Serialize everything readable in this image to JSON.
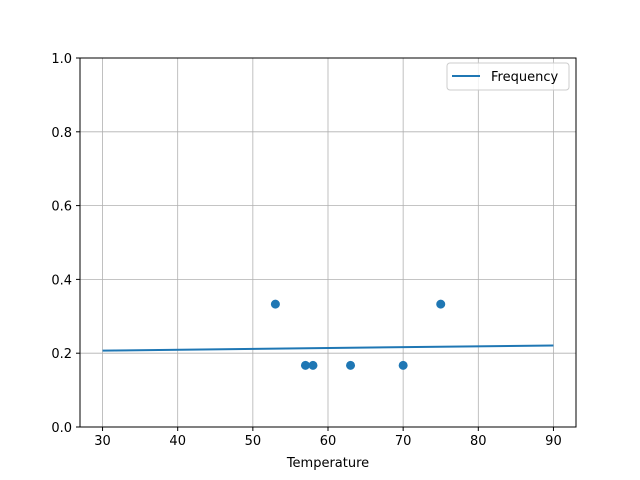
{
  "chart_data": {
    "type": "scatter",
    "title": "",
    "xlabel": "Temperature",
    "ylabel": "",
    "xlim": [
      27,
      93
    ],
    "ylim": [
      0,
      1.0
    ],
    "grid": true,
    "xticks": [
      30,
      40,
      50,
      60,
      70,
      80,
      90
    ],
    "yticks": [
      "0.0",
      "0.2",
      "0.4",
      "0.6",
      "0.8",
      "1.0"
    ],
    "scatter": {
      "x": [
        53,
        57,
        58,
        63,
        70,
        75
      ],
      "y": [
        0.333,
        0.167,
        0.167,
        0.167,
        0.167,
        0.333
      ],
      "color": "#1f77b4"
    },
    "series": [
      {
        "name": "Frequency",
        "type": "line",
        "x": [
          30,
          90
        ],
        "y": [
          0.207,
          0.221
        ],
        "color": "#1f77b4"
      }
    ],
    "legend": {
      "placement": "top-right",
      "entries": [
        "Frequency"
      ]
    }
  }
}
